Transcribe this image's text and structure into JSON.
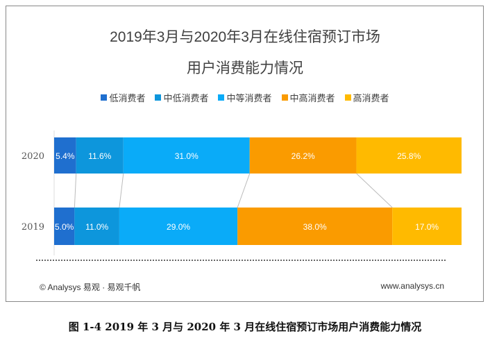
{
  "chart_data": {
    "type": "bar",
    "orientation": "horizontal-stacked-100",
    "title_line1": "2019年3月与2020年3月在线住宿预订市场",
    "title_line2": "用户消费能力情况",
    "categories": [
      "2020",
      "2019"
    ],
    "series": [
      {
        "name": "低消费者",
        "color": "#1f6fcf",
        "values": [
          5.4,
          5.0
        ]
      },
      {
        "name": "中低消费者",
        "color": "#0d96dc",
        "values": [
          11.6,
          11.0
        ]
      },
      {
        "name": "中等消费者",
        "color": "#0aabf8",
        "values": [
          31.0,
          29.0
        ]
      },
      {
        "name": "中高消费者",
        "color": "#fa9b00",
        "values": [
          26.2,
          38.0
        ]
      },
      {
        "name": "高消费者",
        "color": "#ffba00",
        "values": [
          25.8,
          17.0
        ]
      }
    ],
    "unit": "%",
    "legend": "top",
    "xlim": [
      0,
      100
    ]
  },
  "footer": {
    "left": "© Analysys 易观 · 易观千帆",
    "right": "www.analysys.cn"
  },
  "caption": "图 1-4 2019 年 3 月与 2020 年 3 月在线住宿预订市场用户消费能力情况"
}
